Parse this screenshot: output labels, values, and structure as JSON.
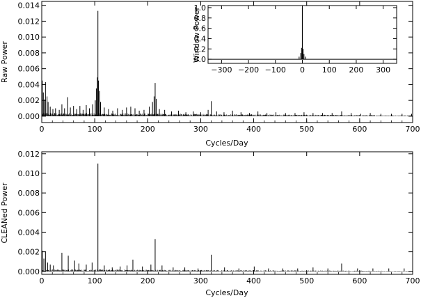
{
  "chart_data": [
    {
      "type": "line",
      "id": "raw",
      "xlabel": "Cycles/Day",
      "ylabel": "Raw  Power",
      "xlim": [
        0,
        700
      ],
      "ylim": [
        -0.0008,
        0.0145
      ],
      "xticks": [
        0,
        100,
        200,
        300,
        400,
        500,
        600,
        700
      ],
      "yticks": [
        0.0,
        0.002,
        0.004,
        0.006,
        0.008,
        0.01,
        0.012,
        0.014
      ],
      "ytick_labels": [
        "0.000",
        "0.002",
        "0.004",
        "0.006",
        "0.008",
        "0.010",
        "0.012",
        "0.014"
      ],
      "peaks": [
        {
          "x": 1,
          "y": 0.0045
        },
        {
          "x": 3,
          "y": 0.003
        },
        {
          "x": 5,
          "y": 0.0021
        },
        {
          "x": 7,
          "y": 0.0043
        },
        {
          "x": 10,
          "y": 0.0025
        },
        {
          "x": 12,
          "y": 0.0018
        },
        {
          "x": 16,
          "y": 0.0012
        },
        {
          "x": 21,
          "y": 0.0009
        },
        {
          "x": 26,
          "y": 0.001
        },
        {
          "x": 33,
          "y": 0.0008
        },
        {
          "x": 38,
          "y": 0.0015
        },
        {
          "x": 43,
          "y": 0.001
        },
        {
          "x": 49,
          "y": 0.0024
        },
        {
          "x": 54,
          "y": 0.0011
        },
        {
          "x": 60,
          "y": 0.0013
        },
        {
          "x": 66,
          "y": 0.0009
        },
        {
          "x": 72,
          "y": 0.0013
        },
        {
          "x": 78,
          "y": 0.0008
        },
        {
          "x": 84,
          "y": 0.0014
        },
        {
          "x": 90,
          "y": 0.001
        },
        {
          "x": 96,
          "y": 0.0015
        },
        {
          "x": 101,
          "y": 0.002
        },
        {
          "x": 103,
          "y": 0.0035
        },
        {
          "x": 105,
          "y": 0.0049
        },
        {
          "x": 106,
          "y": 0.0133
        },
        {
          "x": 107,
          "y": 0.0045
        },
        {
          "x": 109,
          "y": 0.0032
        },
        {
          "x": 111,
          "y": 0.0018
        },
        {
          "x": 118,
          "y": 0.0011
        },
        {
          "x": 126,
          "y": 0.0009
        },
        {
          "x": 134,
          "y": 0.0007
        },
        {
          "x": 143,
          "y": 0.001
        },
        {
          "x": 152,
          "y": 0.0008
        },
        {
          "x": 160,
          "y": 0.0011
        },
        {
          "x": 168,
          "y": 0.0012
        },
        {
          "x": 176,
          "y": 0.001
        },
        {
          "x": 184,
          "y": 0.0007
        },
        {
          "x": 193,
          "y": 0.0008
        },
        {
          "x": 203,
          "y": 0.0012
        },
        {
          "x": 209,
          "y": 0.0018
        },
        {
          "x": 212,
          "y": 0.0025
        },
        {
          "x": 214,
          "y": 0.0042
        },
        {
          "x": 216,
          "y": 0.0022
        },
        {
          "x": 222,
          "y": 0.0009
        },
        {
          "x": 232,
          "y": 0.0008
        },
        {
          "x": 245,
          "y": 0.0006
        },
        {
          "x": 258,
          "y": 0.0007
        },
        {
          "x": 272,
          "y": 0.0005
        },
        {
          "x": 286,
          "y": 0.0006
        },
        {
          "x": 300,
          "y": 0.0005
        },
        {
          "x": 314,
          "y": 0.0008
        },
        {
          "x": 320,
          "y": 0.0019
        },
        {
          "x": 330,
          "y": 0.0006
        },
        {
          "x": 344,
          "y": 0.0005
        },
        {
          "x": 360,
          "y": 0.0007
        },
        {
          "x": 376,
          "y": 0.0005
        },
        {
          "x": 392,
          "y": 0.0004
        },
        {
          "x": 408,
          "y": 0.0006
        },
        {
          "x": 425,
          "y": 0.0004
        },
        {
          "x": 442,
          "y": 0.0005
        },
        {
          "x": 460,
          "y": 0.0004
        },
        {
          "x": 478,
          "y": 0.0004
        },
        {
          "x": 495,
          "y": 0.0005
        },
        {
          "x": 512,
          "y": 0.0004
        },
        {
          "x": 530,
          "y": 0.0004
        },
        {
          "x": 548,
          "y": 0.0004
        },
        {
          "x": 566,
          "y": 0.0006
        },
        {
          "x": 584,
          "y": 0.0004
        },
        {
          "x": 602,
          "y": 0.0003
        },
        {
          "x": 620,
          "y": 0.0004
        },
        {
          "x": 640,
          "y": 0.0003
        },
        {
          "x": 660,
          "y": 0.0003
        },
        {
          "x": 680,
          "y": 0.0003
        },
        {
          "x": 698,
          "y": 0.0003
        }
      ],
      "noise_floor": 0.0004,
      "inset": {
        "type": "line",
        "ylabel": "Window  Power",
        "xlim": [
          -350,
          350
        ],
        "ylim": [
          -0.08,
          1.04
        ],
        "xticks": [
          -300,
          -200,
          -100,
          0,
          100,
          200,
          300
        ],
        "xtick_labels": [
          "−300",
          "−200",
          "−100",
          "0",
          "100",
          "200",
          "300"
        ],
        "yticks": [
          0.0,
          0.2,
          0.4,
          0.6,
          0.8,
          1.0
        ],
        "ytick_labels": [
          "0.0",
          "0.2",
          "0.4",
          "0.6",
          "0.8",
          "1.0"
        ],
        "peak": {
          "x": 0,
          "y": 1.0
        },
        "side_peaks": [
          {
            "x": -6,
            "y": 0.12
          },
          {
            "x": -3,
            "y": 0.22
          },
          {
            "x": 3,
            "y": 0.2
          },
          {
            "x": 6,
            "y": 0.1
          },
          {
            "x": -12,
            "y": 0.05
          },
          {
            "x": 12,
            "y": 0.05
          }
        ]
      }
    },
    {
      "type": "line",
      "id": "clean",
      "xlabel": "Cycles/Day",
      "ylabel": "CLEANed  Power",
      "xlim": [
        0,
        700
      ],
      "ylim": [
        -0.0003,
        0.0122
      ],
      "xticks": [
        0,
        100,
        200,
        300,
        400,
        500,
        600,
        700
      ],
      "yticks": [
        0.0,
        0.002,
        0.004,
        0.006,
        0.008,
        0.01,
        0.012
      ],
      "ytick_labels": [
        "0.000",
        "0.002",
        "0.004",
        "0.006",
        "0.008",
        "0.010",
        "0.012"
      ],
      "peaks": [
        {
          "x": 1,
          "y": 0.0021
        },
        {
          "x": 4,
          "y": 0.0013
        },
        {
          "x": 7,
          "y": 0.002
        },
        {
          "x": 11,
          "y": 0.0009
        },
        {
          "x": 16,
          "y": 0.0007
        },
        {
          "x": 22,
          "y": 0.0006
        },
        {
          "x": 38,
          "y": 0.0019
        },
        {
          "x": 50,
          "y": 0.0016
        },
        {
          "x": 62,
          "y": 0.0011
        },
        {
          "x": 70,
          "y": 0.0008
        },
        {
          "x": 84,
          "y": 0.0007
        },
        {
          "x": 95,
          "y": 0.0009
        },
        {
          "x": 106,
          "y": 0.011
        },
        {
          "x": 118,
          "y": 0.0006
        },
        {
          "x": 133,
          "y": 0.0004
        },
        {
          "x": 148,
          "y": 0.0005
        },
        {
          "x": 161,
          "y": 0.0006
        },
        {
          "x": 172,
          "y": 0.0012
        },
        {
          "x": 190,
          "y": 0.0005
        },
        {
          "x": 206,
          "y": 0.0007
        },
        {
          "x": 214,
          "y": 0.0033
        },
        {
          "x": 227,
          "y": 0.0006
        },
        {
          "x": 248,
          "y": 0.0004
        },
        {
          "x": 270,
          "y": 0.0004
        },
        {
          "x": 295,
          "y": 0.0003
        },
        {
          "x": 320,
          "y": 0.0017
        },
        {
          "x": 345,
          "y": 0.0004
        },
        {
          "x": 372,
          "y": 0.0003
        },
        {
          "x": 401,
          "y": 0.0005
        },
        {
          "x": 428,
          "y": 0.0003
        },
        {
          "x": 455,
          "y": 0.0003
        },
        {
          "x": 483,
          "y": 0.0003
        },
        {
          "x": 512,
          "y": 0.0004
        },
        {
          "x": 540,
          "y": 0.0003
        },
        {
          "x": 566,
          "y": 0.0008
        },
        {
          "x": 596,
          "y": 0.0003
        },
        {
          "x": 625,
          "y": 0.0003
        },
        {
          "x": 655,
          "y": 0.0003
        },
        {
          "x": 684,
          "y": 0.0003
        }
      ],
      "noise_floor": 0.0002
    }
  ]
}
